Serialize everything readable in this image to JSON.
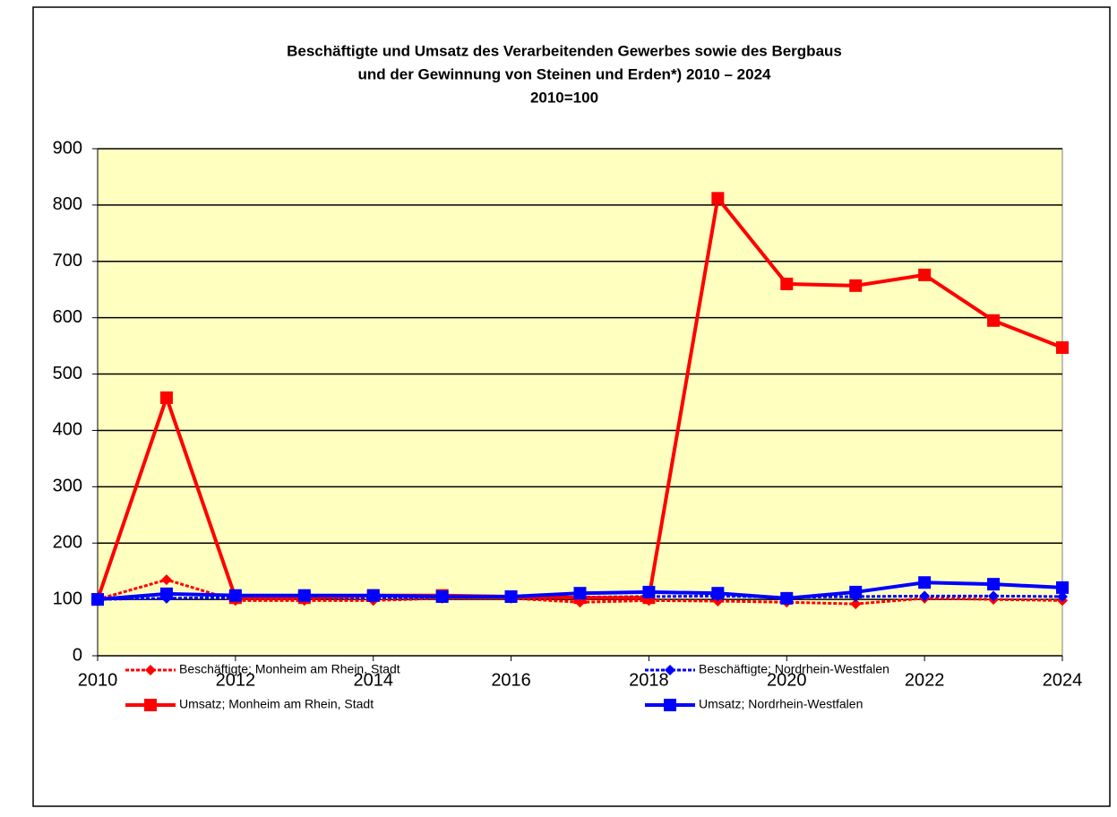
{
  "chart_data": {
    "type": "line",
    "title_lines": [
      "Beschäftigte und Umsatz des Verarbeitenden Gewerbes sowie des Bergbaus",
      "und der Gewinnung von Steinen und Erden*) 2010 – 2024",
      "2010=100"
    ],
    "x": [
      2010,
      2011,
      2012,
      2013,
      2014,
      2015,
      2016,
      2017,
      2018,
      2019,
      2020,
      2021,
      2022,
      2023,
      2024
    ],
    "xlim": [
      2010,
      2024
    ],
    "xticks": [
      2010,
      2012,
      2014,
      2016,
      2018,
      2020,
      2022,
      2024
    ],
    "ylim": [
      0,
      900
    ],
    "yticks": [
      0,
      100,
      200,
      300,
      400,
      500,
      600,
      700,
      800,
      900
    ],
    "grid": true,
    "plot_background": "#ffffc0",
    "series": [
      {
        "name": "Beschäftigte; Monheim am Rhein, Stadt",
        "color": "#ff0000",
        "marker": "diamond",
        "line_style": "dashed",
        "values": [
          100,
          135,
          98,
          98,
          98,
          102,
          102,
          95,
          98,
          97,
          95,
          92,
          102,
          100,
          98
        ]
      },
      {
        "name": "Beschäftigte; Nordrhein-Westfalen",
        "color": "#0000ff",
        "marker": "diamond",
        "line_style": "dashed",
        "values": [
          100,
          102,
          103,
          103,
          103,
          104,
          104,
          104,
          105,
          106,
          104,
          105,
          106,
          106,
          105
        ]
      },
      {
        "name": "Umsatz; Monheim am Rhein, Stadt",
        "color": "#ff0000",
        "marker": "square",
        "line_style": "solid",
        "values": [
          100,
          458,
          103,
          103,
          107,
          107,
          105,
          103,
          103,
          812,
          660,
          657,
          676,
          595,
          547
        ]
      },
      {
        "name": "Umsatz; Nordrhein-Westfalen",
        "color": "#0000ff",
        "marker": "square",
        "line_style": "solid",
        "values": [
          100,
          110,
          107,
          107,
          107,
          105,
          105,
          111,
          113,
          111,
          102,
          113,
          130,
          127,
          121
        ]
      }
    ]
  }
}
